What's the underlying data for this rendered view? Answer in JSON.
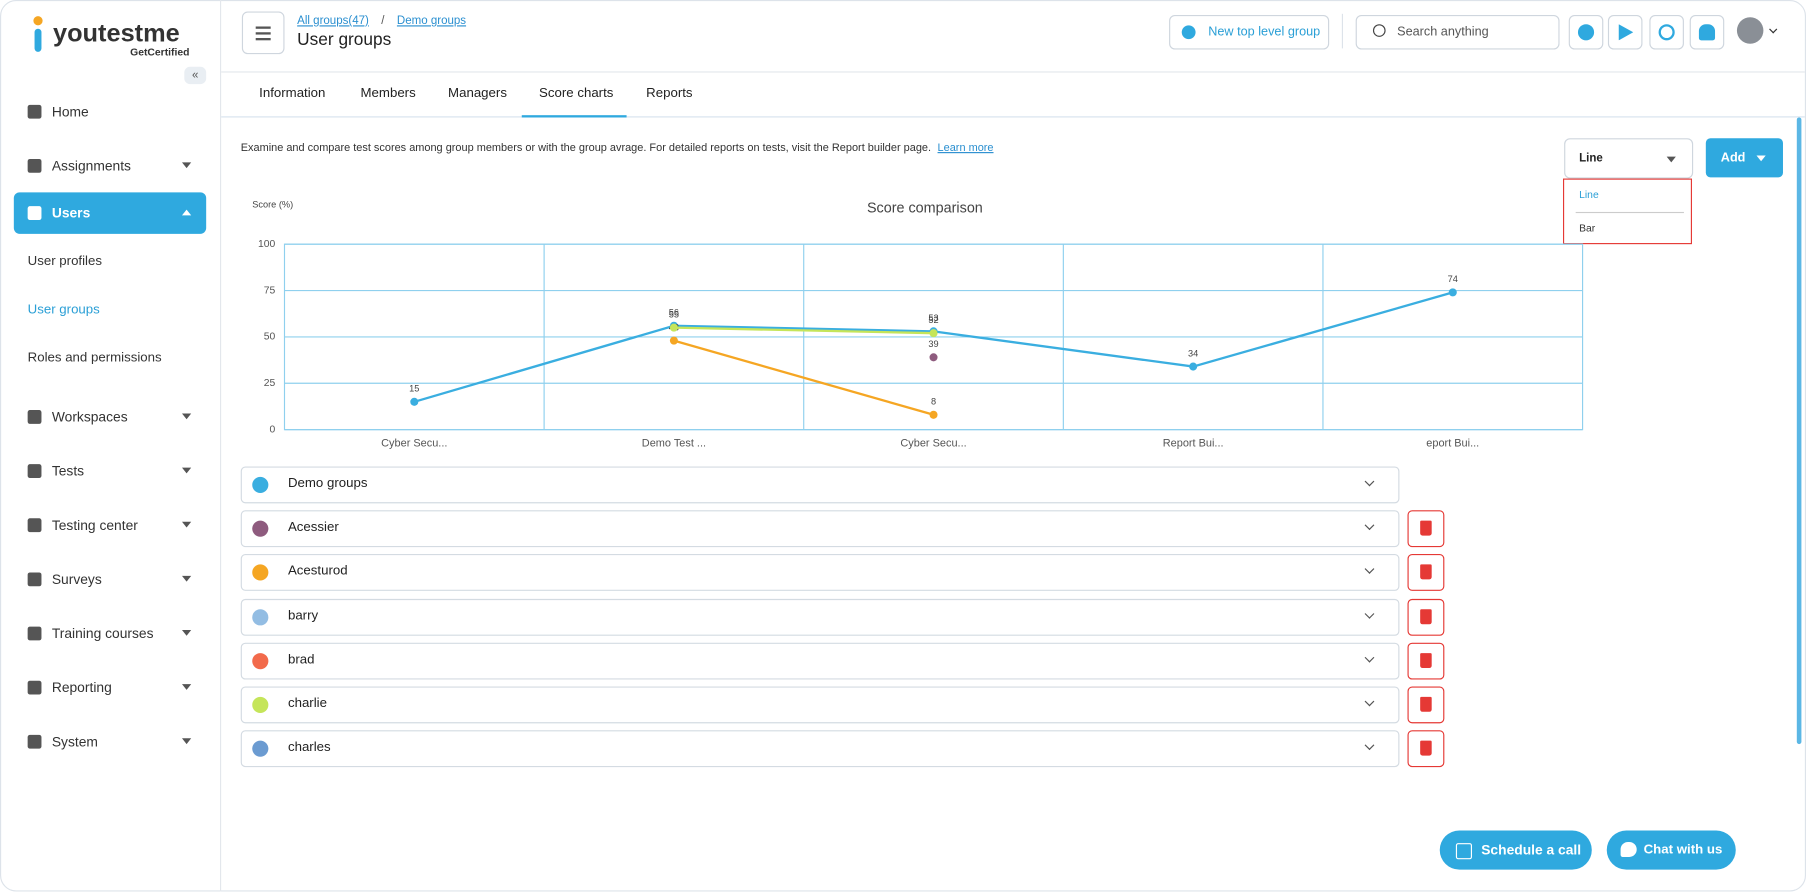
{
  "logo": {
    "brand": "youtestme",
    "tagline": "GetCertified"
  },
  "sidebar": {
    "items": [
      {
        "label": "Home"
      },
      {
        "label": "Assignments",
        "expandable": true
      },
      {
        "label": "Users",
        "expandable": true,
        "active": true,
        "children": [
          "User profiles",
          "User groups",
          "Roles and permissions"
        ],
        "active_child": 1
      },
      {
        "label": "Workspaces",
        "expandable": true
      },
      {
        "label": "Tests",
        "expandable": true
      },
      {
        "label": "Testing center",
        "expandable": true
      },
      {
        "label": "Surveys",
        "expandable": true
      },
      {
        "label": "Training courses",
        "expandable": true
      },
      {
        "label": "Reporting",
        "expandable": true
      },
      {
        "label": "System",
        "expandable": true
      }
    ]
  },
  "header": {
    "breadcrumbs": [
      "All groups(47)",
      "Demo groups"
    ],
    "separator": "/",
    "title": "User groups",
    "new_group": "New top level group",
    "search_placeholder": "Search anything"
  },
  "tabs": {
    "items": [
      "Information",
      "Members",
      "Managers",
      "Score charts",
      "Reports"
    ],
    "active": 3
  },
  "description": {
    "text": "Examine and compare test scores among group members or with the group avrage. For detailed reports on tests, visit the Report builder page.",
    "link": "Learn more"
  },
  "chart_type_select": {
    "value": "Line",
    "options": [
      "Line",
      "Bar"
    ]
  },
  "add_button": "Add",
  "chart_data": {
    "type": "line",
    "title": "Score comparison",
    "y_label": "Score (%)",
    "categories": [
      "Cyber Secu...",
      "Demo Test ...",
      "Cyber Secu...",
      "Report Bui...",
      "eport Bui..."
    ],
    "ylim": [
      0,
      100
    ],
    "yticks": [
      0,
      25,
      50,
      75,
      100
    ],
    "grid": true,
    "series": [
      {
        "name": "Demo groups",
        "color": "#3aaee0",
        "values": [
          15,
          56,
          53,
          34,
          74
        ]
      },
      {
        "name": "Acessier",
        "color": "#8e5b7e",
        "values": [
          null,
          null,
          39,
          null,
          null
        ]
      },
      {
        "name": "Acesturod",
        "color": "#f5a623",
        "values": [
          null,
          48,
          8,
          null,
          null
        ]
      },
      {
        "name": "barry",
        "color": "#93bde3",
        "values": [
          null,
          null,
          null,
          null,
          null
        ]
      },
      {
        "name": "brad",
        "color": "#f26a4b",
        "values": [
          null,
          null,
          null,
          null,
          null
        ]
      },
      {
        "name": "charlie",
        "color": "#c5e55a",
        "values": [
          null,
          55,
          52,
          null,
          null
        ]
      },
      {
        "name": "charles",
        "color": "#6b9bd1",
        "values": [
          null,
          null,
          null,
          null,
          null
        ]
      }
    ]
  },
  "footer_buttons": {
    "schedule": "Schedule a call",
    "chat": "Chat with us"
  }
}
